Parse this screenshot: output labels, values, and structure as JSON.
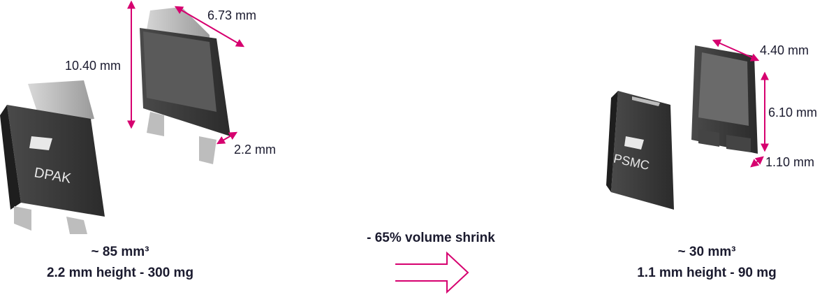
{
  "dpak": {
    "dimensions": {
      "width": "6.73 mm",
      "length": "10.40 mm",
      "height": "2.2 mm"
    },
    "marking": "DPAK",
    "volume": "~ 85 mm³",
    "specs": "2.2 mm height - 300 mg"
  },
  "transition": {
    "label": "- 65% volume shrink"
  },
  "psmc": {
    "dimensions": {
      "width": "4.40 mm",
      "length": "6.10 mm",
      "height": "1.10 mm"
    },
    "marking": "PSMC",
    "volume": "~ 30 mm³",
    "specs": "1.1 mm height - 90 mg"
  }
}
